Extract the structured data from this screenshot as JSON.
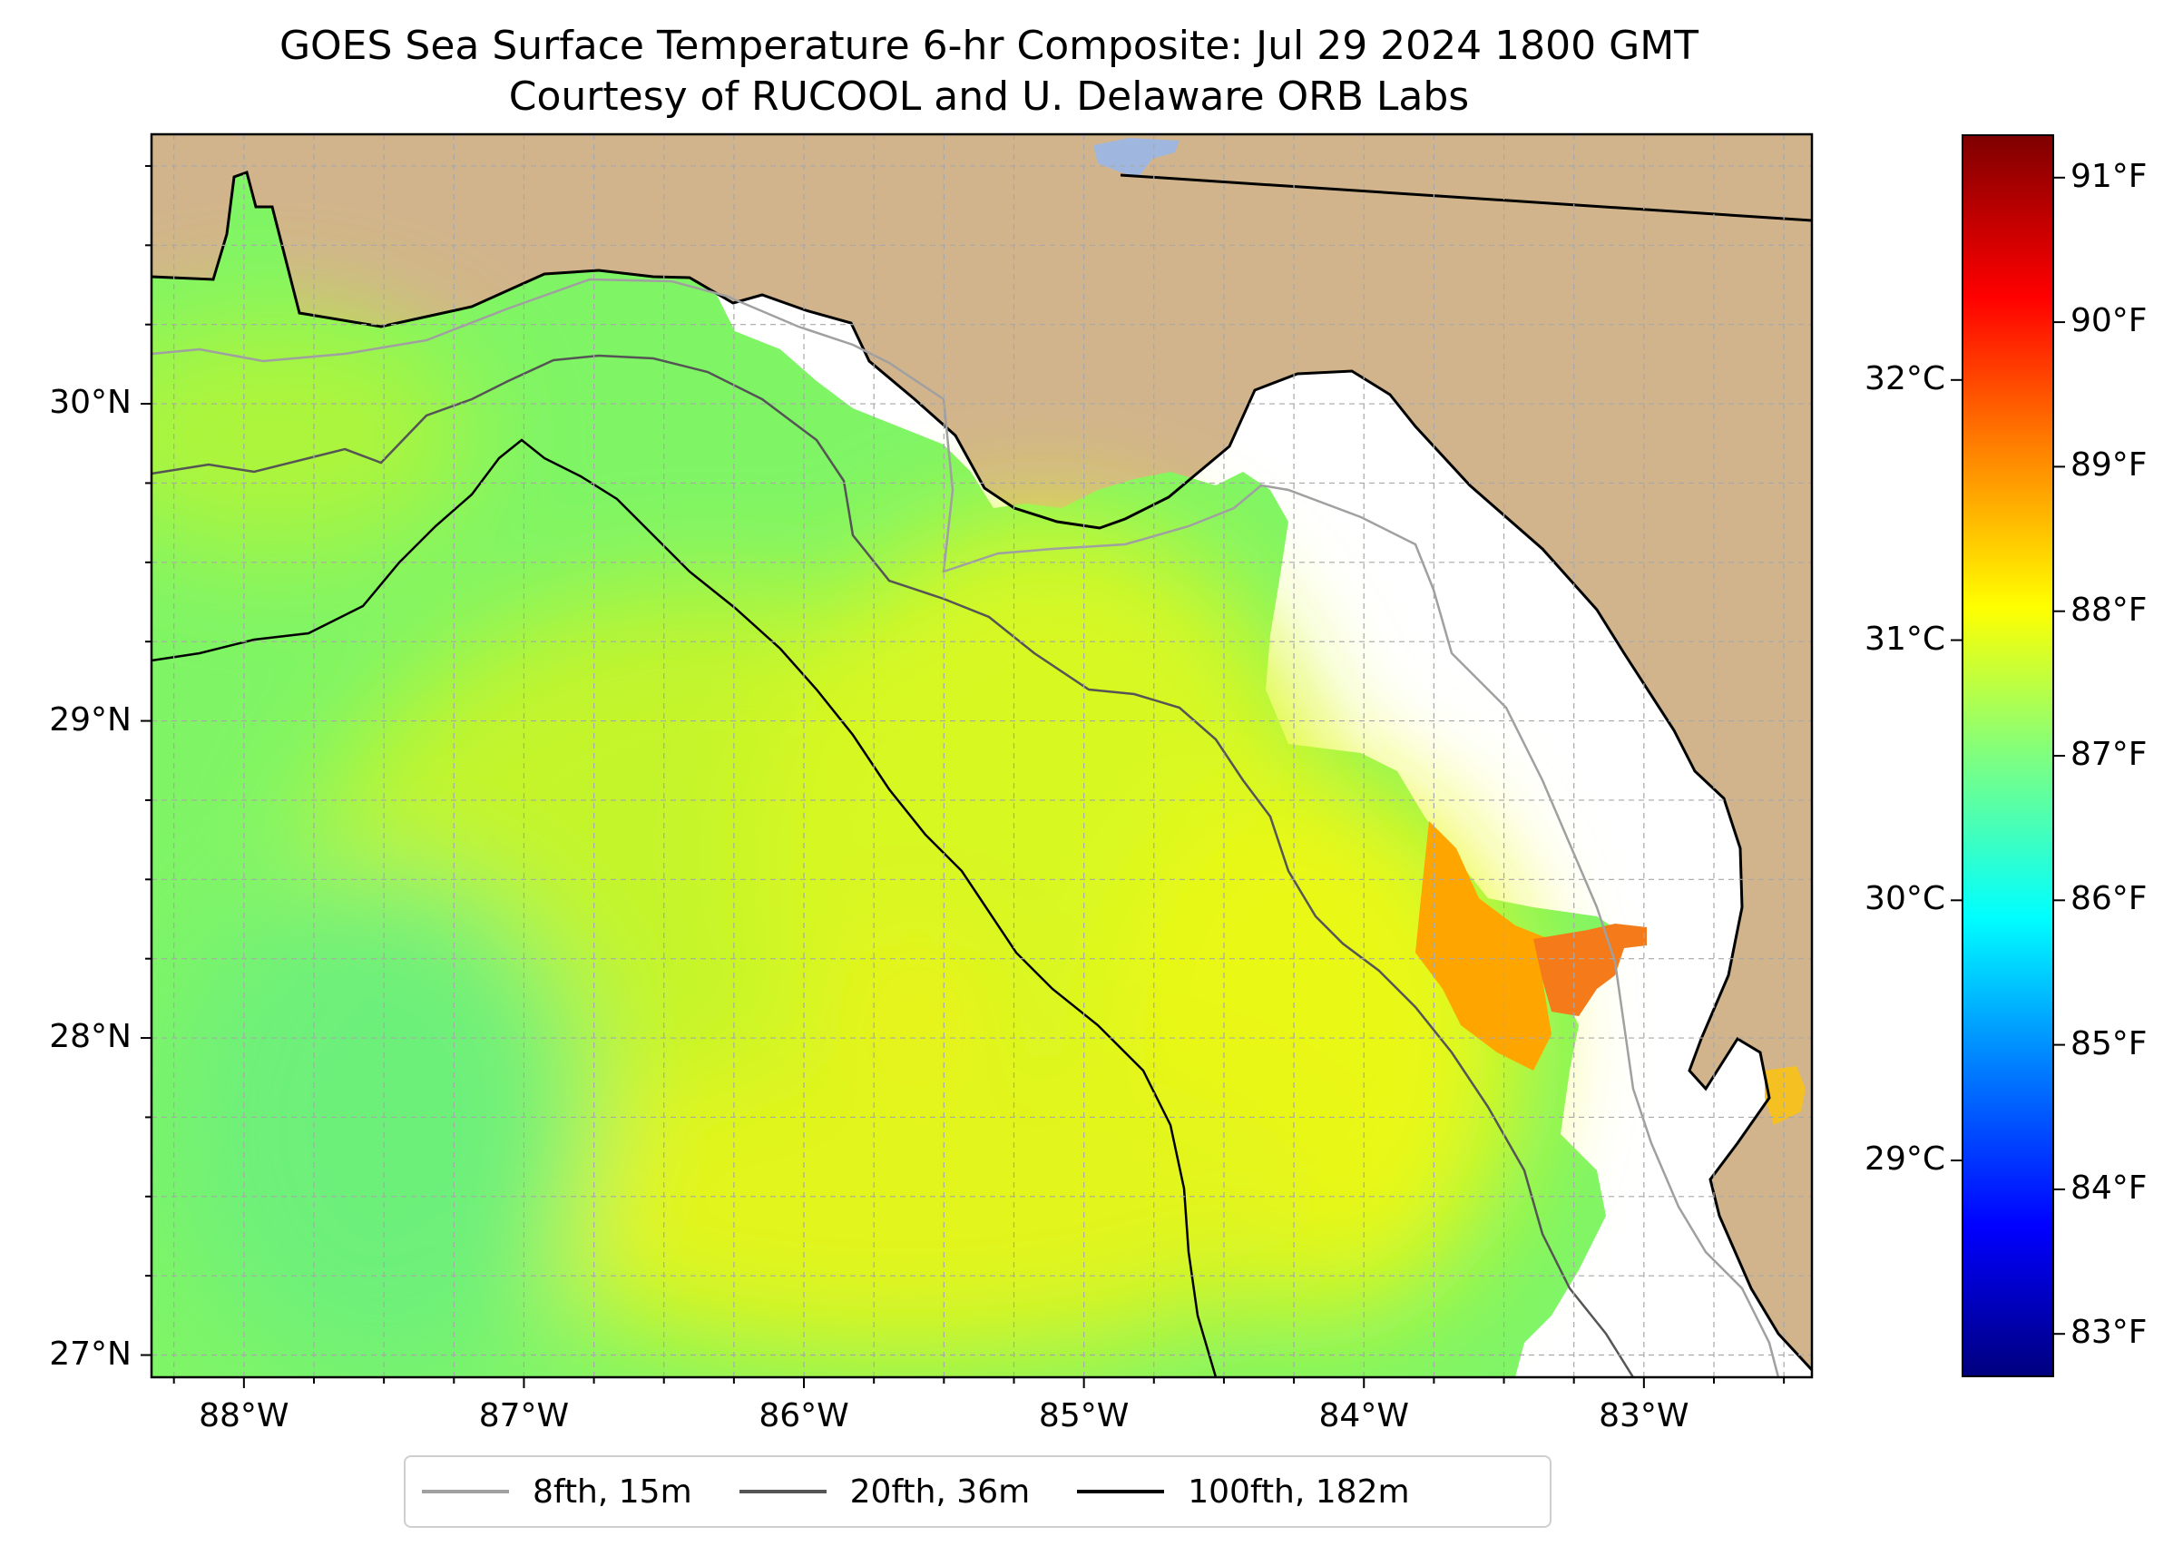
{
  "title": {
    "line1": "GOES Sea Surface Temperature 6-hr Composite: Jul 29 2024 1800 GMT",
    "line2": "Courtesy of RUCOOL and U. Delaware ORB Labs"
  },
  "map": {
    "extent": {
      "lon_min": -88.33,
      "lon_max": -82.4,
      "lat_min": 26.93,
      "lat_max": 30.85
    },
    "longitude_ticks": [
      {
        "value": -88,
        "label": "88°W"
      },
      {
        "value": -87,
        "label": "87°W"
      },
      {
        "value": -86,
        "label": "86°W"
      },
      {
        "value": -85,
        "label": "85°W"
      },
      {
        "value": -84,
        "label": "84°W"
      },
      {
        "value": -83,
        "label": "83°W"
      }
    ],
    "latitude_ticks": [
      {
        "value": 30,
        "label": "30°N"
      },
      {
        "value": 29,
        "label": "29°N"
      },
      {
        "value": 28,
        "label": "28°N"
      },
      {
        "value": 27,
        "label": "27°N"
      }
    ],
    "gridlines": true,
    "colors": {
      "land": "#d2b48c",
      "no_data": "#ffffff",
      "grid": "#b0b0b0"
    },
    "isobaths": [
      {
        "label": "8fth, 15m",
        "color": "#a0a0a0"
      },
      {
        "label": "20fth, 36m",
        "color": "#555555"
      },
      {
        "label": "100fth, 182m",
        "color": "#000000"
      }
    ],
    "legend_position": "bottom-center"
  },
  "colorbar": {
    "colormap": "jet",
    "celsius_ticks": [
      {
        "value": 32,
        "label": "32°C"
      },
      {
        "value": 31,
        "label": "31°C"
      },
      {
        "value": 30,
        "label": "30°C"
      },
      {
        "value": 29,
        "label": "29°C"
      }
    ],
    "fahrenheit_ticks": [
      {
        "value": 91,
        "label": "91°F"
      },
      {
        "value": 90,
        "label": "90°F"
      },
      {
        "value": 89,
        "label": "89°F"
      },
      {
        "value": 88,
        "label": "88°F"
      },
      {
        "value": 87,
        "label": "87°F"
      },
      {
        "value": 86,
        "label": "86°F"
      },
      {
        "value": 85,
        "label": "85°F"
      },
      {
        "value": 84,
        "label": "84°F"
      },
      {
        "value": 83,
        "label": "83°F"
      }
    ],
    "range_f": [
      82.7,
      91.3
    ]
  }
}
